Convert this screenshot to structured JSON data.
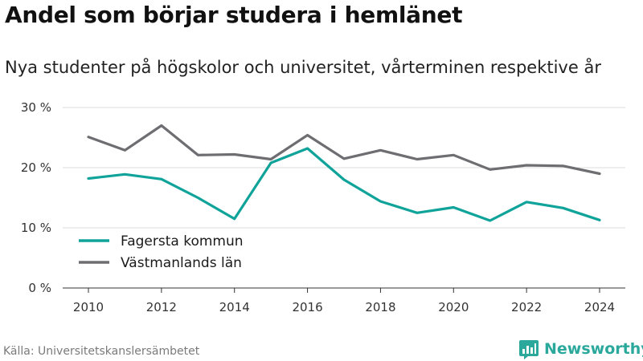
{
  "header": {
    "title": "Andel som börjar studera i hemlänet",
    "subtitle": "Nya studenter på högskolor och universitet, vårterminen respektive år"
  },
  "footer": {
    "source": "Källa: Universitetskanslersämbetet",
    "brand": "Newsworthy",
    "brand_icon": "bar-chart-logo-icon"
  },
  "colors": {
    "fagersta": "#10a39a",
    "vastmanland": "#6e6e72",
    "grid": "#dddddd",
    "brand": "#2aa89b"
  },
  "chart_data": {
    "type": "line",
    "x": [
      2010,
      2011,
      2012,
      2013,
      2014,
      2015,
      2016,
      2017,
      2018,
      2019,
      2020,
      2021,
      2022,
      2023,
      2024
    ],
    "series": [
      {
        "name": "Fagersta kommun",
        "color": "#10a39a",
        "values": [
          18.2,
          18.9,
          18.1,
          15.0,
          11.5,
          20.8,
          23.2,
          18.0,
          14.4,
          12.5,
          13.4,
          11.2,
          14.3,
          13.3,
          11.3
        ]
      },
      {
        "name": "Västmanlands län",
        "color": "#6e6e72",
        "values": [
          25.1,
          22.9,
          27.0,
          22.1,
          22.2,
          21.4,
          25.4,
          21.5,
          22.9,
          21.4,
          22.1,
          19.7,
          20.4,
          20.3,
          19.0
        ]
      }
    ],
    "ylim": [
      0,
      30
    ],
    "yticks": [
      0,
      10,
      20,
      30
    ],
    "ytick_labels": [
      "0 %",
      "10 %",
      "20 %",
      "30 %"
    ],
    "xticks": [
      2010,
      2012,
      2014,
      2016,
      2018,
      2020,
      2022,
      2024
    ],
    "xtick_labels": [
      "2010",
      "2012",
      "2014",
      "2016",
      "2018",
      "2020",
      "2022",
      "2024"
    ],
    "grid": true,
    "legend": "bottom-left"
  }
}
